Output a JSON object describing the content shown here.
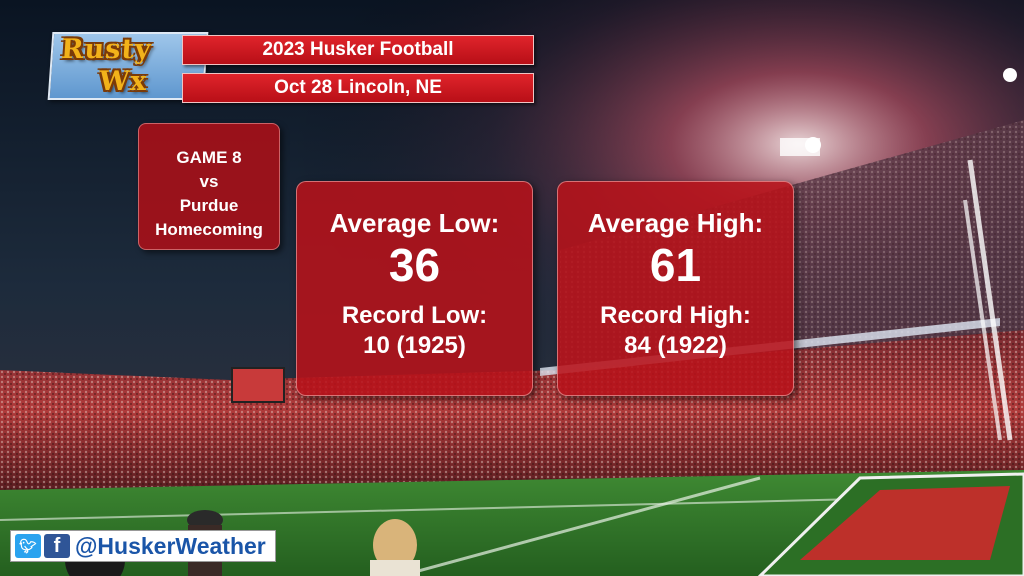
{
  "logo": {
    "line1": "Rusty",
    "line2": "Wx"
  },
  "header": {
    "title": "2023 Husker Football",
    "subtitle": "Oct 28  Lincoln, NE"
  },
  "game": {
    "line1": "GAME 8",
    "line2": "vs",
    "line3": "Purdue",
    "line4": "Homecoming"
  },
  "low": {
    "avg_label": "Average Low:",
    "avg_value": "36",
    "record_label": "Record Low:",
    "record_value": "10 (1925)"
  },
  "high": {
    "avg_label": "Average High:",
    "avg_value": "61",
    "record_label": "Record High:",
    "record_value": "84 (1922)"
  },
  "social": {
    "twitter_icon": "twitter-icon",
    "facebook_icon": "facebook-icon",
    "handle": "@HuskerWeather"
  },
  "colors": {
    "accent_red": "#c8141c",
    "logo_gold": "#f2b21a",
    "logo_blue": "#6aa2d6",
    "field_green": "#2f7a2a",
    "handle_blue": "#1a55a8"
  }
}
